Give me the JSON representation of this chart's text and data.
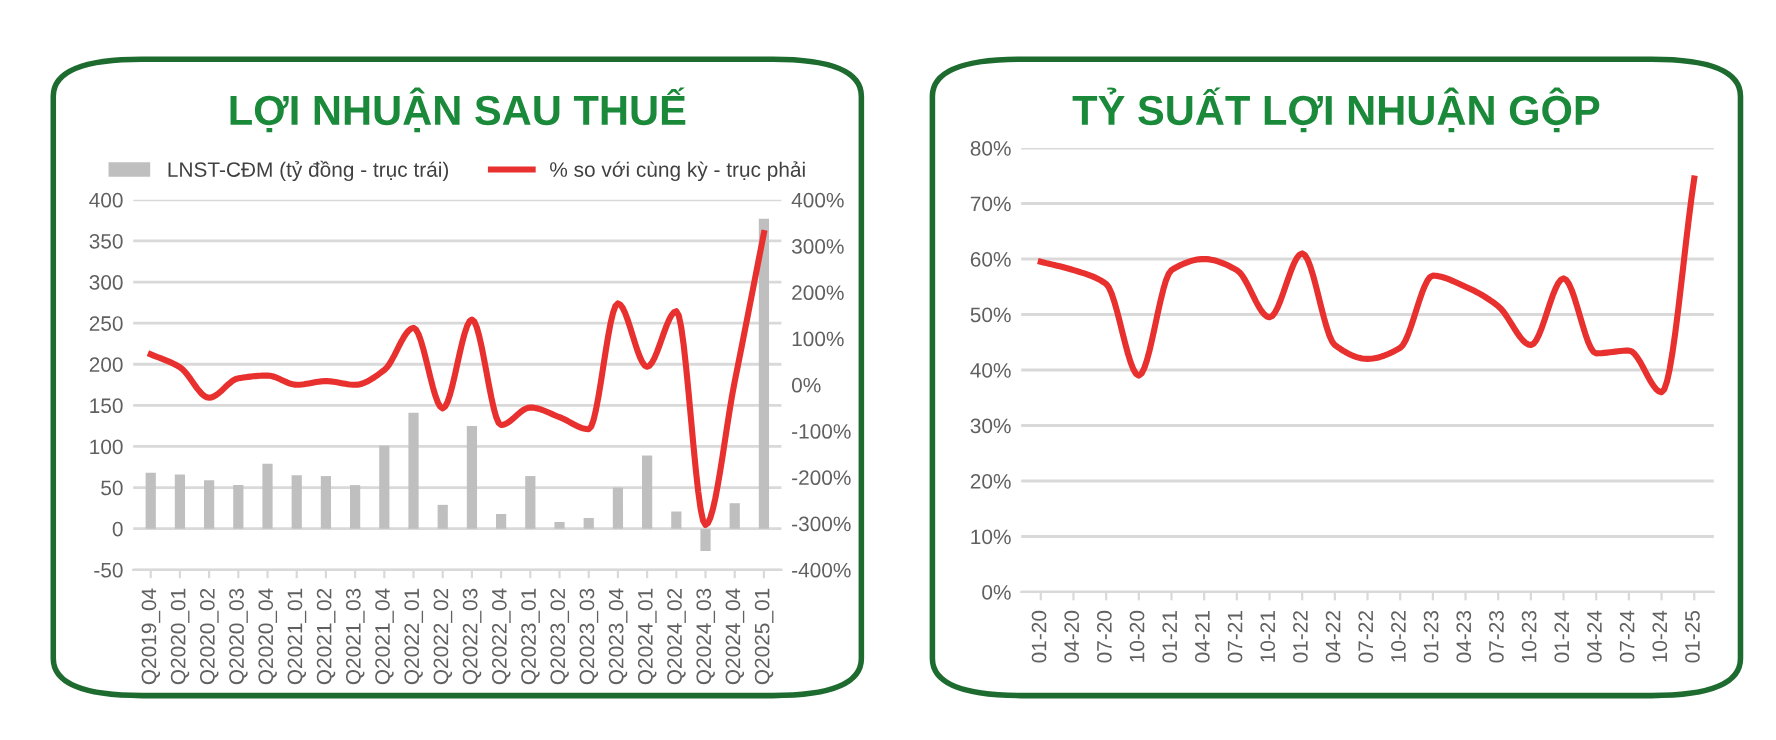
{
  "chart_data": [
    {
      "type": "bar",
      "title": "LỢI NHUẬN SAU THUẾ",
      "categories": [
        "Q2019_04",
        "Q2020_01",
        "Q2020_02",
        "Q2020_03",
        "Q2020_04",
        "Q2021_01",
        "Q2021_02",
        "Q2021_03",
        "Q2021_04",
        "Q2022_01",
        "Q2022_02",
        "Q2022_03",
        "Q2022_04",
        "Q2023_01",
        "Q2023_02",
        "Q2023_03",
        "Q2023_04",
        "Q2024_01",
        "Q2024_02",
        "Q2024_03",
        "Q2024_04",
        "Q2025_01"
      ],
      "series": [
        {
          "name": "LNST-CĐM (tỷ đồng - trục trái)",
          "type": "bar",
          "color": "#bfbfbf",
          "values": [
            68,
            66,
            59,
            53,
            79,
            65,
            64,
            53,
            101,
            141,
            29,
            125,
            18,
            64,
            8,
            13,
            50,
            89,
            21,
            -27,
            31,
            377
          ]
        },
        {
          "name": "% so với cùng kỳ - trục phải",
          "type": "line",
          "axis": "y2",
          "color": "#e8312f",
          "values": [
            66,
            38,
            -28,
            14,
            20,
            0,
            8,
            0,
            32,
            123,
            -51,
            141,
            -87,
            -49,
            -70,
            -96,
            176,
            39,
            159,
            -303,
            7,
            328
          ]
        }
      ],
      "ylim": [
        -50,
        400
      ],
      "yticks": [
        -50,
        0,
        50,
        100,
        150,
        200,
        250,
        300,
        350,
        400
      ],
      "y2lim": [
        -400,
        400
      ],
      "y2ticks": [
        {
          "value": -400,
          "label": "-400%"
        },
        {
          "value": -300,
          "label": "-300%"
        },
        {
          "value": -200,
          "label": "-200%"
        },
        {
          "value": -100,
          "label": "-100%"
        },
        {
          "value": 0,
          "label": "0%"
        },
        {
          "value": 100,
          "label": "100%"
        },
        {
          "value": 200,
          "label": "200%"
        },
        {
          "value": 300,
          "label": "300%"
        },
        {
          "value": 400,
          "label": "400%"
        }
      ],
      "grid": "y",
      "legend": "top",
      "marker": "none",
      "line_style": "solid"
    },
    {
      "type": "line",
      "title": "TỶ SUẤT LỢI NHUẬN GỘP",
      "categories": [
        "01-20",
        "04-20",
        "07-20",
        "10-20",
        "01-21",
        "04-21",
        "07-21",
        "10-21",
        "01-22",
        "04-22",
        "07-22",
        "10-22",
        "01-23",
        "04-23",
        "07-23",
        "10-23",
        "01-24",
        "04-24",
        "07-24",
        "10-24",
        "01-25"
      ],
      "series": [
        {
          "color": "#e8312f",
          "values": [
            59.5,
            58,
            55.5,
            39,
            58,
            60,
            58,
            49.5,
            61,
            44.5,
            42,
            44,
            57,
            55,
            51.5,
            44.5,
            56.5,
            43,
            43.5,
            36,
            74.5
          ]
        }
      ],
      "ylim": [
        0,
        80
      ],
      "yticks": [
        {
          "value": 0,
          "label": "0%"
        },
        {
          "value": 10,
          "label": "10%"
        },
        {
          "value": 20,
          "label": "20%"
        },
        {
          "value": 30,
          "label": "30%"
        },
        {
          "value": 40,
          "label": "40%"
        },
        {
          "value": 50,
          "label": "50%"
        },
        {
          "value": 60,
          "label": "60%"
        },
        {
          "value": 70,
          "label": "70%"
        },
        {
          "value": 80,
          "label": "80%"
        }
      ],
      "grid": "y",
      "marker": "none",
      "line_style": "solid"
    }
  ]
}
